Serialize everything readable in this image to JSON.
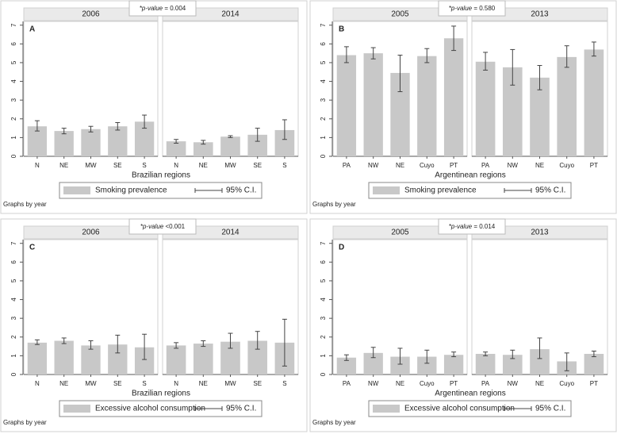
{
  "chart_data": [
    {
      "type": "bar",
      "label": "A",
      "annotation": [
        "*p-value",
        " = 0.004"
      ],
      "x_label": "Brazilian regions",
      "note": "Graphs by year",
      "legend": [
        "Smoking prevalence",
        "95% C.I."
      ],
      "color": "#c8c8c8",
      "ylim": [
        0,
        7.2
      ],
      "yticks": [
        0,
        1,
        2,
        3,
        4,
        5,
        6,
        7
      ],
      "panels": [
        {
          "title": "2006",
          "categories": [
            "N",
            "NE",
            "MW",
            "SE",
            "S"
          ],
          "values": [
            1.6,
            1.35,
            1.45,
            1.6,
            1.85
          ],
          "ci_low": [
            1.35,
            1.2,
            1.3,
            1.4,
            1.5
          ],
          "ci_high": [
            1.9,
            1.5,
            1.6,
            1.8,
            2.2
          ]
        },
        {
          "title": "2014",
          "categories": [
            "N",
            "NE",
            "MW",
            "SE",
            "S"
          ],
          "values": [
            0.8,
            0.75,
            1.05,
            1.15,
            1.4
          ],
          "ci_low": [
            0.7,
            0.65,
            1.0,
            0.8,
            0.9
          ],
          "ci_high": [
            0.9,
            0.85,
            1.1,
            1.5,
            1.95
          ]
        }
      ]
    },
    {
      "type": "bar",
      "label": "B",
      "annotation": [
        "*p-value",
        " = 0.580"
      ],
      "x_label": "Argentinean regions",
      "note": "Graphs by year",
      "legend": [
        "Smoking prevalence",
        "95% C.I."
      ],
      "color": "#c8c8c8",
      "ylim": [
        0,
        7.2
      ],
      "yticks": [
        0,
        1,
        2,
        3,
        4,
        5,
        6,
        7
      ],
      "panels": [
        {
          "title": "2005",
          "categories": [
            "PA",
            "NW",
            "NE",
            "Cuyo",
            "PT"
          ],
          "values": [
            5.4,
            5.5,
            4.45,
            5.35,
            6.3
          ],
          "ci_low": [
            5.0,
            5.2,
            3.45,
            5.0,
            5.65
          ],
          "ci_high": [
            5.85,
            5.8,
            5.4,
            5.75,
            6.95
          ]
        },
        {
          "title": "2013",
          "categories": [
            "PA",
            "NW",
            "NE",
            "Cuyo",
            "PT"
          ],
          "values": [
            5.05,
            4.75,
            4.2,
            5.3,
            5.7
          ],
          "ci_low": [
            4.6,
            3.8,
            3.55,
            4.75,
            5.35
          ],
          "ci_high": [
            5.55,
            5.7,
            4.85,
            5.9,
            6.1
          ]
        }
      ]
    },
    {
      "type": "bar",
      "label": "C",
      "annotation": [
        "*p-value",
        " <0.001"
      ],
      "x_label": "Brazilian regions",
      "note": "Graphs by year",
      "legend": [
        "Excessive alcohol consumption",
        "95% C.I."
      ],
      "color": "#c8c8c8",
      "ylim": [
        0,
        7.2
      ],
      "yticks": [
        0,
        1,
        2,
        3,
        4,
        5,
        6,
        7
      ],
      "panels": [
        {
          "title": "2006",
          "categories": [
            "N",
            "NE",
            "MW",
            "SE",
            "S"
          ],
          "values": [
            1.7,
            1.8,
            1.55,
            1.6,
            1.45
          ],
          "ci_low": [
            1.6,
            1.65,
            1.35,
            1.15,
            0.8
          ],
          "ci_high": [
            1.85,
            1.95,
            1.8,
            2.1,
            2.15
          ]
        },
        {
          "title": "2014",
          "categories": [
            "N",
            "NE",
            "MW",
            "SE",
            "S"
          ],
          "values": [
            1.55,
            1.65,
            1.75,
            1.8,
            1.7
          ],
          "ci_low": [
            1.4,
            1.5,
            1.4,
            1.35,
            0.45
          ],
          "ci_high": [
            1.7,
            1.8,
            2.2,
            2.3,
            2.95
          ]
        }
      ]
    },
    {
      "type": "bar",
      "label": "D",
      "annotation": [
        "*p-value",
        " = 0.014"
      ],
      "x_label": "Argentinean regions",
      "note": "Graphs by year",
      "legend": [
        "Excessive alcohol consumption",
        "95% C.I."
      ],
      "color": "#c8c8c8",
      "ylim": [
        0,
        7.2
      ],
      "yticks": [
        0,
        1,
        2,
        3,
        4,
        5,
        6,
        7
      ],
      "panels": [
        {
          "title": "2005",
          "categories": [
            "PA",
            "NW",
            "NE",
            "Cuyo",
            "PT"
          ],
          "values": [
            0.9,
            1.15,
            0.95,
            0.95,
            1.05
          ],
          "ci_low": [
            0.75,
            0.9,
            0.55,
            0.6,
            0.95
          ],
          "ci_high": [
            1.05,
            1.45,
            1.4,
            1.3,
            1.2
          ]
        },
        {
          "title": "2013",
          "categories": [
            "PA",
            "NW",
            "NE",
            "Cuyo",
            "PT"
          ],
          "values": [
            1.1,
            1.05,
            1.35,
            0.7,
            1.1
          ],
          "ci_low": [
            1.0,
            0.85,
            0.85,
            0.2,
            0.95
          ],
          "ci_high": [
            1.2,
            1.3,
            1.95,
            1.15,
            1.25
          ]
        }
      ]
    }
  ]
}
